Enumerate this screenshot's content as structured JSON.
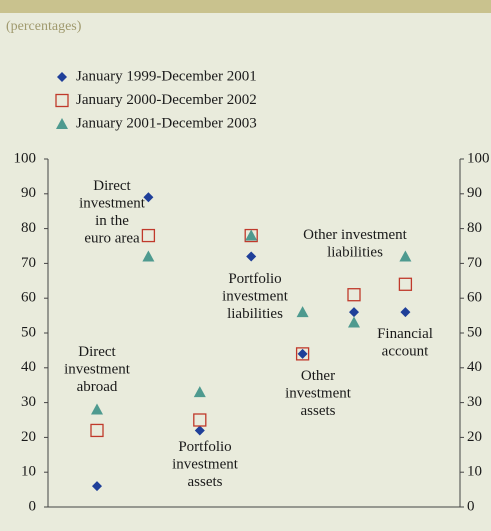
{
  "chart_data": {
    "type": "scatter",
    "subtitle": "(percentages)",
    "categories": [
      "Direct investment abroad",
      "Direct investment in the euro area",
      "Portfolio investment assets",
      "Portfolio investment liabilities",
      "Other investment assets",
      "Other investment liabilities",
      "Financial account"
    ],
    "series": [
      {
        "name": "January 1999-December 2001",
        "color": "#1f3f99",
        "marker": "diamond",
        "values": [
          6,
          89,
          22,
          72,
          44,
          56,
          56
        ]
      },
      {
        "name": "January 2000-December 2002",
        "color": "#c0392b",
        "marker": "square",
        "values": [
          22,
          78,
          25,
          78,
          44,
          61,
          64
        ]
      },
      {
        "name": "January 2001-December 2003",
        "color": "#4e9a8f",
        "marker": "triangle",
        "values": [
          28,
          72,
          33,
          78,
          56,
          53,
          72
        ]
      }
    ],
    "ylim": [
      0,
      100
    ],
    "yticks": [
      0,
      10,
      20,
      30,
      40,
      50,
      60,
      70,
      80,
      90,
      100
    ],
    "y2lim": [
      0,
      100
    ],
    "y2ticks": [
      0,
      10,
      20,
      30,
      40,
      50,
      60,
      70,
      80,
      90,
      100
    ],
    "grid": false
  }
}
